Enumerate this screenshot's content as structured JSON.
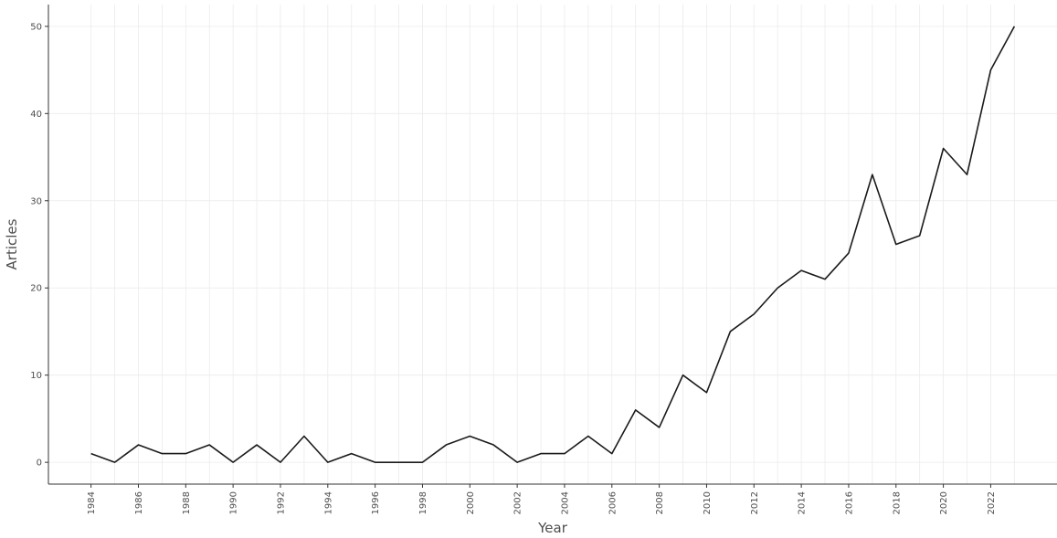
{
  "chart_data": {
    "type": "line",
    "title": "",
    "xlabel": "Year",
    "ylabel": "Articles",
    "x": [
      1984,
      1985,
      1986,
      1987,
      1988,
      1989,
      1990,
      1991,
      1992,
      1993,
      1994,
      1995,
      1996,
      1997,
      1998,
      1999,
      2000,
      2001,
      2002,
      2003,
      2004,
      2005,
      2006,
      2007,
      2008,
      2009,
      2010,
      2011,
      2012,
      2013,
      2014,
      2015,
      2016,
      2017,
      2018,
      2019,
      2020,
      2021,
      2022,
      2023
    ],
    "series": [
      {
        "values": [
          1,
          0,
          2,
          1,
          1,
          2,
          0,
          2,
          0,
          3,
          0,
          1,
          0,
          0,
          0,
          2,
          3,
          2,
          0,
          1,
          1,
          3,
          1,
          6,
          4,
          10,
          8,
          15,
          17,
          20,
          22,
          21,
          24,
          33,
          25,
          26,
          36,
          33,
          45,
          50
        ]
      }
    ],
    "x_ticks": [
      "1984",
      "1986",
      "1988",
      "1990",
      "1992",
      "1994",
      "1996",
      "1998",
      "2000",
      "2002",
      "2004",
      "2006",
      "2008",
      "2010",
      "2012",
      "2014",
      "2016",
      "2018",
      "2020",
      "2022"
    ],
    "y_ticks": [
      "0",
      "10",
      "20",
      "30",
      "40",
      "50"
    ],
    "xlim": [
      1982.2,
      2024.8
    ],
    "ylim": [
      -2.5,
      52.5
    ],
    "grid": true,
    "line_color": "#1a1a1a"
  }
}
